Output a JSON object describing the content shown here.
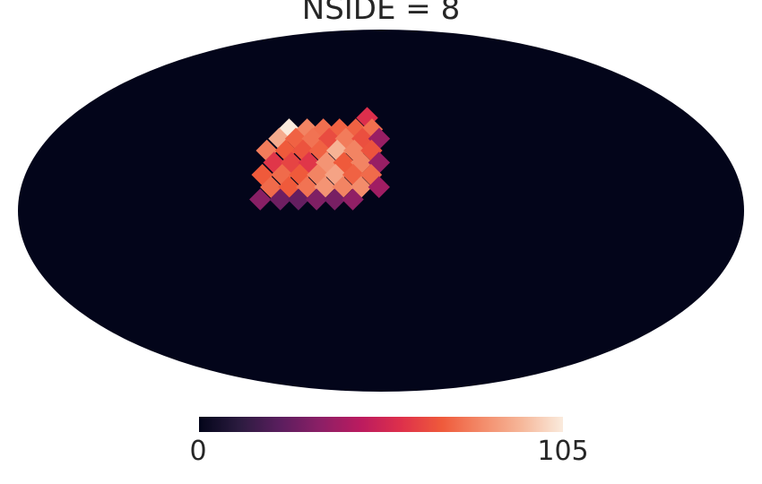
{
  "chart_data": {
    "type": "heatmap",
    "title": "NSIDE = 8",
    "projection": "mollweide",
    "background_value": 0,
    "colormap": "rocket",
    "colorbar": {
      "min": 0,
      "max": 105,
      "min_label": "0",
      "max_label": "105",
      "stops": [
        "#03051a",
        "#2b1b3f",
        "#5a1e5e",
        "#8c1f66",
        "#bb1b5f",
        "#de304b",
        "#ef5a3b",
        "#f38b6a",
        "#f6b89b",
        "#faebdd"
      ]
    },
    "pixel_rows": [
      {
        "lat": 38.5,
        "cells": [
          {
            "lon": -8,
            "value": 58
          }
        ]
      },
      {
        "lat": 33.5,
        "cells": [
          {
            "lon": -51,
            "value": 105
          },
          {
            "lon": -41,
            "value": 80
          },
          {
            "lon": -32,
            "value": 75
          },
          {
            "lon": -23,
            "value": 72
          },
          {
            "lon": -14,
            "value": 72
          },
          {
            "lon": -5,
            "value": 75
          }
        ]
      },
      {
        "lat": 29.5,
        "cells": [
          {
            "lon": -55,
            "value": 90
          },
          {
            "lon": -46,
            "value": 72
          },
          {
            "lon": -37,
            "value": 76
          },
          {
            "lon": -28,
            "value": 66
          },
          {
            "lon": -19,
            "value": 78
          },
          {
            "lon": -10,
            "value": 67
          },
          {
            "lon": -1,
            "value": 38
          }
        ]
      },
      {
        "lat": 24.5,
        "cells": [
          {
            "lon": -60,
            "value": 78
          },
          {
            "lon": -50,
            "value": 70
          },
          {
            "lon": -41,
            "value": 68
          },
          {
            "lon": -32,
            "value": 72
          },
          {
            "lon": -23,
            "value": 92
          },
          {
            "lon": -14,
            "value": 80
          },
          {
            "lon": -5,
            "value": 68
          }
        ]
      },
      {
        "lat": 19.5,
        "cells": [
          {
            "lon": -55,
            "value": 60
          },
          {
            "lon": -46,
            "value": 64
          },
          {
            "lon": -37,
            "value": 60
          },
          {
            "lon": -28,
            "value": 84
          },
          {
            "lon": -19,
            "value": 70
          },
          {
            "lon": -10,
            "value": 80
          },
          {
            "lon": -1,
            "value": 38
          }
        ]
      },
      {
        "lat": 14.5,
        "cells": [
          {
            "lon": -60,
            "value": 70
          },
          {
            "lon": -50,
            "value": 74
          },
          {
            "lon": -41,
            "value": 70
          },
          {
            "lon": -32,
            "value": 80
          },
          {
            "lon": -23,
            "value": 88
          },
          {
            "lon": -14,
            "value": 72
          },
          {
            "lon": -5,
            "value": 74
          }
        ]
      },
      {
        "lat": 9.5,
        "cells": [
          {
            "lon": -55,
            "value": 74
          },
          {
            "lon": -46,
            "value": 70
          },
          {
            "lon": -37,
            "value": 76
          },
          {
            "lon": -28,
            "value": 84
          },
          {
            "lon": -19,
            "value": 80
          },
          {
            "lon": -10,
            "value": 82
          },
          {
            "lon": -1,
            "value": 40
          }
        ]
      },
      {
        "lat": 4.5,
        "cells": [
          {
            "lon": -60,
            "value": 34
          },
          {
            "lon": -50,
            "value": 28
          },
          {
            "lon": -41,
            "value": 26
          },
          {
            "lon": -32,
            "value": 32
          },
          {
            "lon": -23,
            "value": 30
          },
          {
            "lon": -14,
            "value": 36
          }
        ]
      }
    ]
  }
}
